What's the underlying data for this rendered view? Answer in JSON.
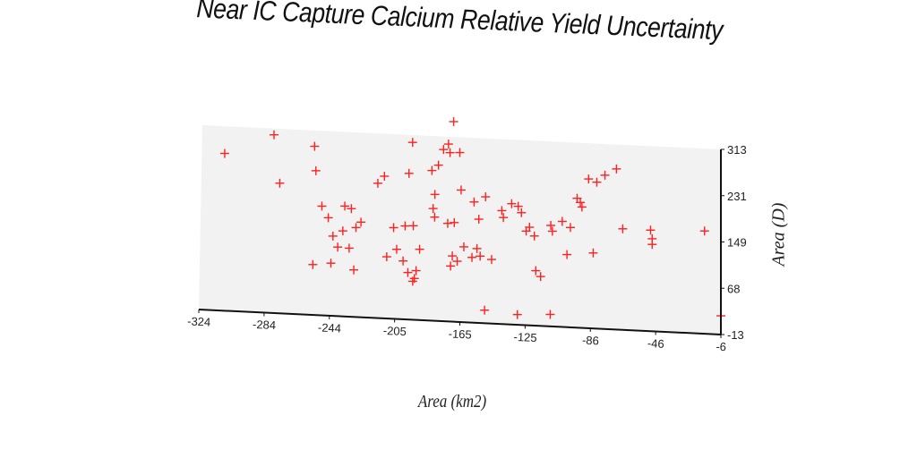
{
  "chart_data": {
    "type": "scatter",
    "title": "Near IC Capture Calcium Relative Yield Uncertainty",
    "xlabel": "Area (km2)",
    "ylabel": "Area (D)",
    "xlim": [
      -324,
      -6
    ],
    "ylim": [
      -13,
      313
    ],
    "x_ticks": [
      "-324",
      "-284",
      "-244",
      "-205",
      "-165",
      "-125",
      "-86",
      "-46",
      "-6"
    ],
    "y_ticks": [
      "-13",
      "68",
      "149",
      "231",
      "313"
    ],
    "grid": false,
    "marker": "plus",
    "marker_color": "#ff2020",
    "background_color": "#f2f2f2",
    "points": [
      {
        "x": -310,
        "y": 265
      },
      {
        "x": -280,
        "y": 302
      },
      {
        "x": -276,
        "y": 217
      },
      {
        "x": -255,
        "y": 285
      },
      {
        "x": -254,
        "y": 242
      },
      {
        "x": -250,
        "y": 180
      },
      {
        "x": -246,
        "y": 160
      },
      {
        "x": -243,
        "y": 128
      },
      {
        "x": -240,
        "y": 109
      },
      {
        "x": -236,
        "y": 182
      },
      {
        "x": -237,
        "y": 138
      },
      {
        "x": -232,
        "y": 178
      },
      {
        "x": -229,
        "y": 145
      },
      {
        "x": -226,
        "y": 155
      },
      {
        "x": -233,
        "y": 108
      },
      {
        "x": -244,
        "y": 80
      },
      {
        "x": -230,
        "y": 70
      },
      {
        "x": -255,
        "y": 76
      },
      {
        "x": -216,
        "y": 225
      },
      {
        "x": -212,
        "y": 238
      },
      {
        "x": -206,
        "y": 148
      },
      {
        "x": -210,
        "y": 96
      },
      {
        "x": -204,
        "y": 110
      },
      {
        "x": -200,
        "y": 90
      },
      {
        "x": -197,
        "y": 70
      },
      {
        "x": -193,
        "y": 60
      },
      {
        "x": -192,
        "y": 74
      },
      {
        "x": -194,
        "y": 55
      },
      {
        "x": -199,
        "y": 152
      },
      {
        "x": -194,
        "y": 153
      },
      {
        "x": -190,
        "y": 112
      },
      {
        "x": -197,
        "y": 245
      },
      {
        "x": -195,
        "y": 300
      },
      {
        "x": -183,
        "y": 252
      },
      {
        "x": -179,
        "y": 262
      },
      {
        "x": -181,
        "y": 210
      },
      {
        "x": -182,
        "y": 185
      },
      {
        "x": -181,
        "y": 170
      },
      {
        "x": -173,
        "y": 160
      },
      {
        "x": -169,
        "y": 162
      },
      {
        "x": -176,
        "y": 290
      },
      {
        "x": -172,
        "y": 285
      },
      {
        "x": -173,
        "y": 300
      },
      {
        "x": -170,
        "y": 340
      },
      {
        "x": -166,
        "y": 286
      },
      {
        "x": -165,
        "y": 220
      },
      {
        "x": -163,
        "y": 120
      },
      {
        "x": -170,
        "y": 103
      },
      {
        "x": -167,
        "y": 94
      },
      {
        "x": -171,
        "y": 85
      },
      {
        "x": -157,
        "y": 200
      },
      {
        "x": -154,
        "y": 170
      },
      {
        "x": -150,
        "y": 210
      },
      {
        "x": -155,
        "y": 118
      },
      {
        "x": -153,
        "y": 105
      },
      {
        "x": -158,
        "y": 102
      },
      {
        "x": -146,
        "y": 100
      },
      {
        "x": -140,
        "y": 187
      },
      {
        "x": -139,
        "y": 175
      },
      {
        "x": -134,
        "y": 200
      },
      {
        "x": -130,
        "y": 196
      },
      {
        "x": -128,
        "y": 185
      },
      {
        "x": -125,
        "y": 153
      },
      {
        "x": -120,
        "y": 145
      },
      {
        "x": -123,
        "y": 160
      },
      {
        "x": -110,
        "y": 165
      },
      {
        "x": -109,
        "y": 155
      },
      {
        "x": -103,
        "y": 173
      },
      {
        "x": -98,
        "y": 163
      },
      {
        "x": -119,
        "y": 84
      },
      {
        "x": -116,
        "y": 74
      },
      {
        "x": -100,
        "y": 115
      },
      {
        "x": -87,
        "y": 250
      },
      {
        "x": -94,
        "y": 215
      },
      {
        "x": -92,
        "y": 208
      },
      {
        "x": -91,
        "y": 200
      },
      {
        "x": -82,
        "y": 245
      },
      {
        "x": -77,
        "y": 258
      },
      {
        "x": -110,
        "y": 8
      },
      {
        "x": -150,
        "y": 10
      },
      {
        "x": -130,
        "y": 5
      },
      {
        "x": -84,
        "y": 120
      },
      {
        "x": -70,
        "y": 270
      },
      {
        "x": -66,
        "y": 165
      },
      {
        "x": -49,
        "y": 165
      },
      {
        "x": -48,
        "y": 140
      },
      {
        "x": -48,
        "y": 150
      },
      {
        "x": -16,
        "y": 168
      },
      {
        "x": -6,
        "y": 20
      }
    ]
  }
}
